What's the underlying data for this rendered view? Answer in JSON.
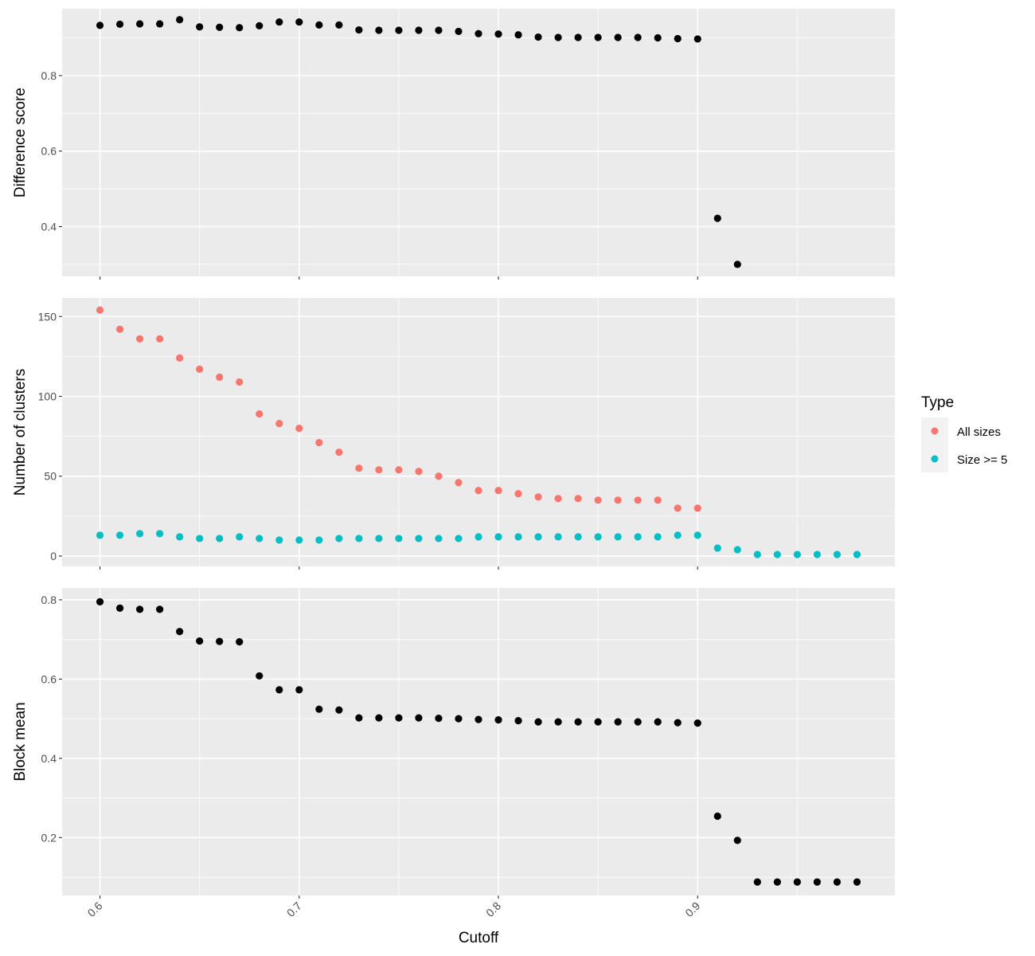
{
  "chart_data": {
    "type": "scatter",
    "xlabel": "Cutoff",
    "x_ticks": [
      "0.6",
      "0.7",
      "0.8",
      "0.9"
    ],
    "x_range": [
      0.581,
      0.999
    ],
    "colors": {
      "panel_bg": "#ebebeb",
      "grid": "#ffffff",
      "black_points": "#000000",
      "all_sizes": "#f8766d",
      "size_ge_5": "#00bfc4"
    },
    "legend": {
      "title": "Type",
      "placement": "right",
      "entries": [
        {
          "label": "All sizes",
          "color": "#f8766d"
        },
        {
          "label": "Size >= 5",
          "color": "#00bfc4"
        }
      ]
    },
    "panels": [
      {
        "ylabel": "Difference score",
        "ylim": [
          0.268,
          0.977
        ],
        "y_ticks": [
          "0.4",
          "0.6",
          "0.8"
        ],
        "series": [
          {
            "color": "#000000",
            "x": [
              0.6,
              0.61,
              0.62,
              0.63,
              0.64,
              0.65,
              0.66,
              0.67,
              0.68,
              0.69,
              0.7,
              0.71,
              0.72,
              0.73,
              0.74,
              0.75,
              0.76,
              0.77,
              0.78,
              0.79,
              0.8,
              0.81,
              0.82,
              0.83,
              0.84,
              0.85,
              0.86,
              0.87,
              0.88,
              0.89,
              0.9,
              0.91,
              0.92
            ],
            "values": [
              0.933,
              0.936,
              0.937,
              0.937,
              0.948,
              0.929,
              0.928,
              0.927,
              0.932,
              0.942,
              0.942,
              0.934,
              0.934,
              0.921,
              0.92,
              0.92,
              0.92,
              0.92,
              0.917,
              0.911,
              0.91,
              0.908,
              0.902,
              0.901,
              0.901,
              0.901,
              0.901,
              0.901,
              0.9,
              0.898,
              0.897,
              0.422,
              0.3
            ]
          }
        ]
      },
      {
        "ylabel": "Number of clusters",
        "ylim": [
          -6.5,
          161.6
        ],
        "y_ticks": [
          "0",
          "50",
          "100",
          "150"
        ],
        "series": [
          {
            "name": "All sizes",
            "color": "#f8766d",
            "x": [
              0.6,
              0.61,
              0.62,
              0.63,
              0.64,
              0.65,
              0.66,
              0.67,
              0.68,
              0.69,
              0.7,
              0.71,
              0.72,
              0.73,
              0.74,
              0.75,
              0.76,
              0.77,
              0.78,
              0.79,
              0.8,
              0.81,
              0.82,
              0.83,
              0.84,
              0.85,
              0.86,
              0.87,
              0.88,
              0.89,
              0.9
            ],
            "values": [
              154,
              142,
              136,
              136,
              124,
              117,
              112,
              109,
              89,
              83,
              80,
              71,
              65,
              55,
              54,
              54,
              53,
              50,
              46,
              41,
              41,
              39,
              37,
              36,
              36,
              35,
              35,
              35,
              35,
              30,
              30
            ]
          },
          {
            "name": "Size >= 5",
            "color": "#00bfc4",
            "x": [
              0.6,
              0.61,
              0.62,
              0.63,
              0.64,
              0.65,
              0.66,
              0.67,
              0.68,
              0.69,
              0.7,
              0.71,
              0.72,
              0.73,
              0.74,
              0.75,
              0.76,
              0.77,
              0.78,
              0.79,
              0.8,
              0.81,
              0.82,
              0.83,
              0.84,
              0.85,
              0.86,
              0.87,
              0.88,
              0.89,
              0.9,
              0.91,
              0.92,
              0.93,
              0.94,
              0.95,
              0.96,
              0.97,
              0.98
            ],
            "values": [
              13,
              13,
              14,
              14,
              12,
              11,
              11,
              12,
              11,
              10,
              10,
              10,
              11,
              11,
              11,
              11,
              11,
              11,
              11,
              12,
              12,
              12,
              12,
              12,
              12,
              12,
              12,
              12,
              12,
              13,
              13,
              5,
              4,
              1,
              1,
              1,
              1,
              1,
              1
            ]
          }
        ]
      },
      {
        "ylabel": "Block mean",
        "ylim": [
          0.054,
          0.83
        ],
        "y_ticks": [
          "0.2",
          "0.4",
          "0.6",
          "0.8"
        ],
        "series": [
          {
            "color": "#000000",
            "x": [
              0.6,
              0.61,
              0.62,
              0.63,
              0.64,
              0.65,
              0.66,
              0.67,
              0.68,
              0.69,
              0.7,
              0.71,
              0.72,
              0.73,
              0.74,
              0.75,
              0.76,
              0.77,
              0.78,
              0.79,
              0.8,
              0.81,
              0.82,
              0.83,
              0.84,
              0.85,
              0.86,
              0.87,
              0.88,
              0.89,
              0.9,
              0.91,
              0.92,
              0.93,
              0.94,
              0.95,
              0.96,
              0.97,
              0.98
            ],
            "values": [
              0.795,
              0.779,
              0.776,
              0.776,
              0.72,
              0.696,
              0.695,
              0.694,
              0.608,
              0.573,
              0.573,
              0.524,
              0.522,
              0.502,
              0.502,
              0.502,
              0.502,
              0.501,
              0.5,
              0.498,
              0.497,
              0.495,
              0.492,
              0.492,
              0.492,
              0.492,
              0.492,
              0.492,
              0.492,
              0.49,
              0.489,
              0.254,
              0.193,
              0.088,
              0.088,
              0.088,
              0.088,
              0.088,
              0.088
            ]
          }
        ]
      }
    ]
  }
}
